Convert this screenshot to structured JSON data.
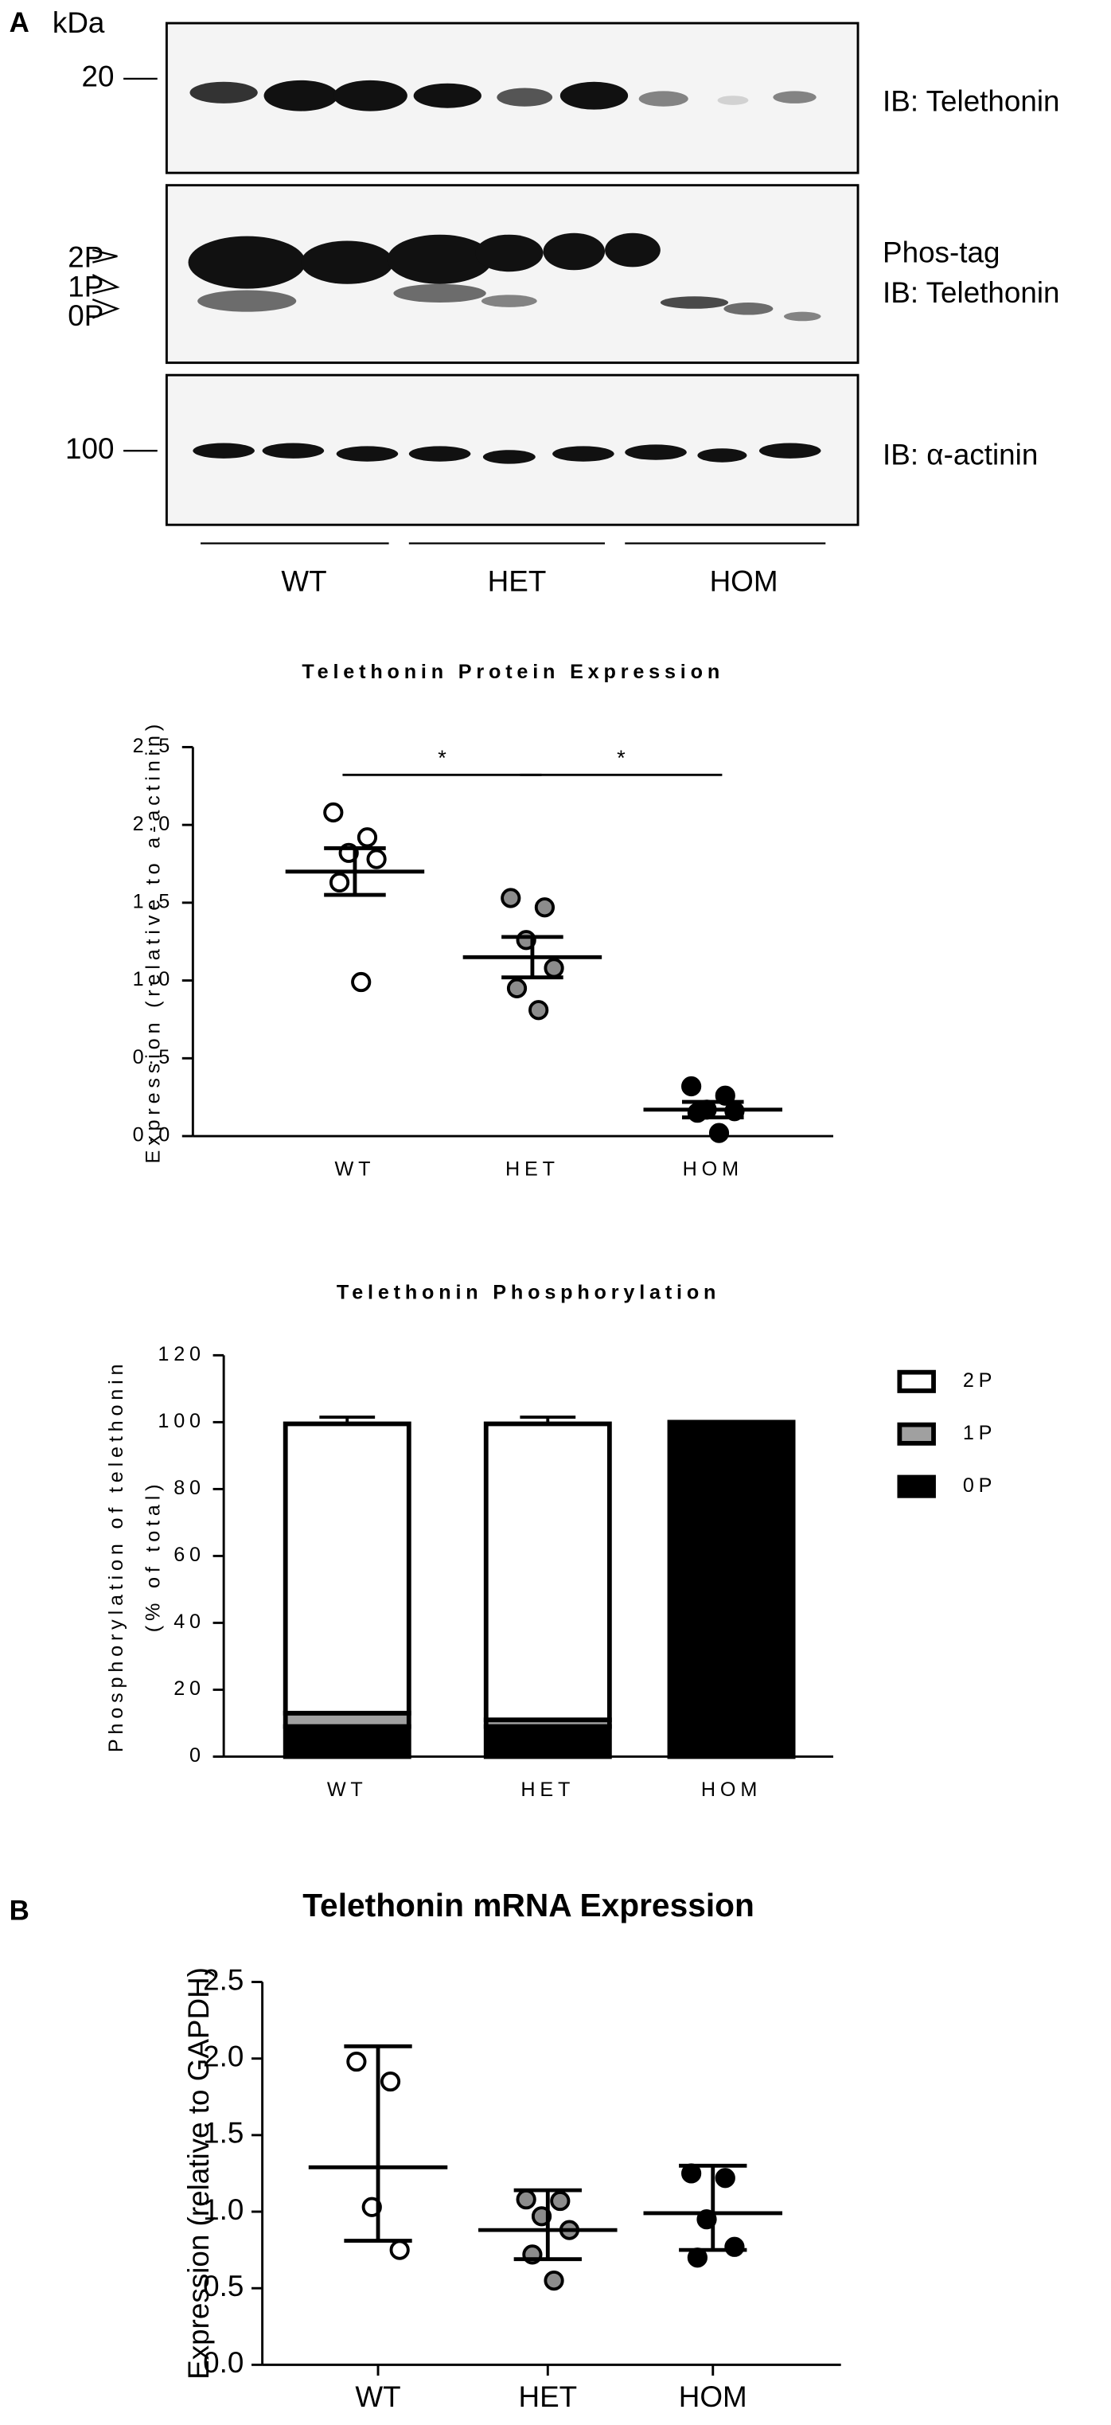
{
  "figure": {
    "panel_a": "A",
    "kda": "kDa",
    "markers": [
      "20",
      "100"
    ],
    "blot_labels": [
      "IB: Telethonin",
      "Phos-tag",
      "IB: Telethonin",
      "IB: α-actinin"
    ],
    "bands": [
      "2P",
      "1P",
      "0P"
    ],
    "groups": [
      "WT",
      "HET",
      "HOM"
    ],
    "panel_b": "B"
  },
  "chart_data": [
    {
      "type": "scatter",
      "title": "Telethonin Protein Expression",
      "ylabel": "Expression (relative to a-actinin)",
      "categories": [
        "WT",
        "HET",
        "HOM"
      ],
      "colors": [
        "#ffffff",
        "#8c8c8c",
        "#000000"
      ],
      "points": [
        [
          2.08,
          1.92,
          1.82,
          1.78,
          1.63,
          0.99
        ],
        [
          1.53,
          1.47,
          1.26,
          1.08,
          0.95,
          0.81
        ],
        [
          0.32,
          0.26,
          0.17,
          0.16,
          0.15,
          0.02
        ]
      ],
      "center": [
        1.7,
        1.15,
        0.17
      ],
      "low": [
        1.55,
        1.02,
        0.12
      ],
      "high": [
        1.85,
        1.28,
        0.22
      ],
      "annotations": [
        "*",
        "*"
      ],
      "ylim": [
        0,
        2.5
      ],
      "yticks": [
        {
          "value": 0,
          "label": "0.0"
        },
        0.5,
        {
          "value": 1,
          "label": "1.0"
        },
        1.5,
        {
          "value": 2,
          "label": "2.0"
        },
        2.5
      ]
    },
    {
      "type": "stacked_bar",
      "title": "Telethonin Phosphorylation",
      "ylabel": [
        "Phosphorylation of telethonin",
        "(% of total)"
      ],
      "categories": [
        "WT",
        "HET",
        "HOM"
      ],
      "legend": "right",
      "series": [
        {
          "name": "0P",
          "color": "#000000",
          "values": [
            9,
            9,
            100
          ],
          "errors": [
            2,
            0,
            0
          ]
        },
        {
          "name": "1P",
          "color": "#a0a0a0",
          "values": [
            4,
            2,
            0
          ],
          "errors": [
            0,
            0,
            0
          ]
        },
        {
          "name": "2P",
          "color": "#ffffff",
          "values": [
            86.5,
            88.5,
            0
          ],
          "errors": [
            2,
            2,
            0
          ]
        }
      ],
      "ylim": [
        0,
        120
      ],
      "yticks": [
        0,
        20,
        40,
        60,
        80,
        100,
        120
      ]
    },
    {
      "type": "scatter",
      "title": "Telethonin mRNA Expression",
      "ylabel": "Expression (relative to GAPDH)",
      "categories": [
        "WT",
        "HET",
        "HOM"
      ],
      "colors": [
        "#ffffff",
        "#8c8c8c",
        "#000000"
      ],
      "points": [
        [
          1.98,
          1.85,
          1.03,
          0.75
        ],
        [
          1.08,
          1.07,
          0.97,
          0.88,
          0.72,
          0.55
        ],
        [
          1.25,
          1.22,
          0.95,
          0.77,
          0.7
        ]
      ],
      "center": [
        1.29,
        0.88,
        0.99
      ],
      "low": [
        0.81,
        0.69,
        0.75
      ],
      "high": [
        2.08,
        1.14,
        1.3
      ],
      "ylim": [
        0,
        2.5
      ],
      "yticks": [
        {
          "value": 0,
          "label": "0.0"
        },
        0.5,
        {
          "value": 1,
          "label": "1.0"
        },
        1.5,
        {
          "value": 2,
          "label": "2.0"
        },
        2.5
      ]
    }
  ]
}
